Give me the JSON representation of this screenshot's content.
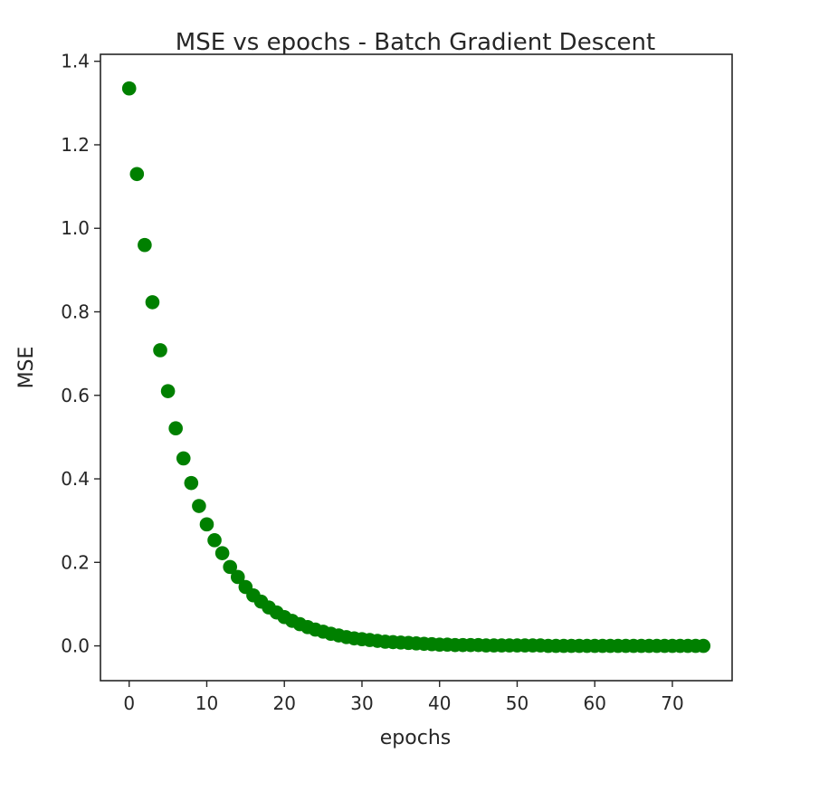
{
  "chart_data": {
    "type": "scatter",
    "title": "MSE vs epochs - Batch Gradient Descent",
    "xlabel": "epochs",
    "ylabel": "MSE",
    "xlim": [
      -3.7,
      77.7
    ],
    "ylim": [
      -0.0833,
      1.4167
    ],
    "xticks": [
      0,
      10,
      20,
      30,
      40,
      50,
      60,
      70
    ],
    "yticks": [
      0.0,
      0.2,
      0.4,
      0.6,
      0.8,
      1.0,
      1.2,
      1.4
    ],
    "ytick_labels": [
      "0.0",
      "0.2",
      "0.4",
      "0.6",
      "0.8",
      "1.0",
      "1.2",
      "1.4"
    ],
    "grid": false,
    "marker_color": "#008000",
    "series": [
      {
        "x": [
          0,
          1,
          2,
          3,
          4,
          5,
          6,
          7,
          8,
          9,
          10,
          11,
          12,
          13,
          14,
          15,
          16,
          17,
          18,
          19,
          20,
          21,
          22,
          23,
          24,
          25,
          26,
          27,
          28,
          29,
          30,
          31,
          32,
          33,
          34,
          35,
          36,
          37,
          38,
          39,
          40,
          41,
          42,
          43,
          44,
          45,
          46,
          47,
          48,
          49,
          50,
          51,
          52,
          53,
          54,
          55,
          56,
          57,
          58,
          59,
          60,
          61,
          62,
          63,
          64,
          65,
          66,
          67,
          68,
          69,
          70,
          71,
          72,
          73,
          74
        ],
        "y": [
          1.335,
          1.13,
          0.96,
          0.823,
          0.708,
          0.61,
          0.521,
          0.449,
          0.39,
          0.335,
          0.291,
          0.253,
          0.222,
          0.189,
          0.165,
          0.141,
          0.121,
          0.106,
          0.092,
          0.08,
          0.069,
          0.06,
          0.052,
          0.045,
          0.039,
          0.034,
          0.029,
          0.025,
          0.021,
          0.018,
          0.016,
          0.014,
          0.012,
          0.01,
          0.009,
          0.008,
          0.007,
          0.006,
          0.005,
          0.004,
          0.003,
          0.003,
          0.002,
          0.002,
          0.002,
          0.002,
          0.001,
          0.001,
          0.001,
          0.001,
          0.001,
          0.001,
          0.001,
          0.001,
          0.0,
          0.0,
          0.0,
          0.0,
          0.0,
          0.0,
          0.0,
          0.0,
          0.0,
          0.0,
          0.0,
          0.0,
          0.0,
          0.0,
          0.0,
          0.0,
          0.0,
          0.0,
          0.0,
          0.0,
          0.0
        ]
      }
    ]
  }
}
